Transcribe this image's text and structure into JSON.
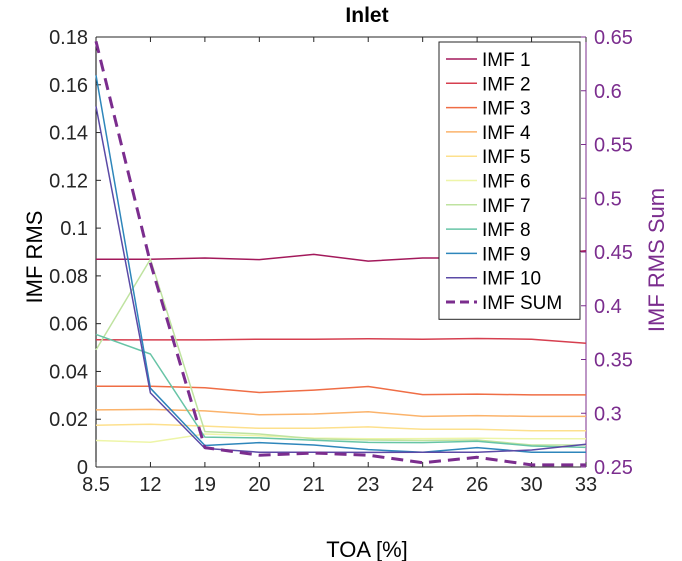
{
  "chart_data": {
    "type": "line",
    "title": "Inlet",
    "xlabel": "TOA [%]",
    "ylabel": "IMF RMS",
    "y2label": "IMF RMS Sum",
    "categories": [
      "8.5",
      "12",
      "19",
      "20",
      "21",
      "23",
      "24",
      "26",
      "30",
      "33"
    ],
    "ylim": [
      0,
      0.18
    ],
    "yticks": [
      0,
      0.02,
      0.04,
      0.06,
      0.08,
      0.1,
      0.12,
      0.14,
      0.16,
      0.18
    ],
    "y2lim": [
      0.25,
      0.65
    ],
    "y2ticks": [
      0.25,
      0.3,
      0.35,
      0.4,
      0.45,
      0.5,
      0.55,
      0.6,
      0.65
    ],
    "grid": false,
    "legend_position": "top-right",
    "left_axis_color": "#000000",
    "right_axis_color": "#7b2d8e",
    "series": [
      {
        "name": "IMF 1",
        "axis": "left",
        "color": "#a3195b",
        "dashed": false,
        "values": [
          0.087,
          0.087,
          0.0875,
          0.0868,
          0.089,
          0.0862,
          0.0875,
          0.0875,
          0.0885,
          0.0905
        ]
      },
      {
        "name": "IMF 2",
        "axis": "left",
        "color": "#d63f4f",
        "dashed": false,
        "values": [
          0.0533,
          0.0532,
          0.0532,
          0.0535,
          0.0535,
          0.0537,
          0.0535,
          0.0538,
          0.0535,
          0.0518
        ]
      },
      {
        "name": "IMF 3",
        "axis": "left",
        "color": "#ef6d45",
        "dashed": false,
        "values": [
          0.0338,
          0.0338,
          0.0332,
          0.0312,
          0.0322,
          0.0337,
          0.0303,
          0.0305,
          0.0302,
          0.0302
        ]
      },
      {
        "name": "IMF 4",
        "axis": "left",
        "color": "#fbb36b",
        "dashed": false,
        "values": [
          0.0239,
          0.0241,
          0.0235,
          0.0219,
          0.0222,
          0.0231,
          0.0212,
          0.0215,
          0.0212,
          0.0212
        ]
      },
      {
        "name": "IMF 5",
        "axis": "left",
        "color": "#fde08d",
        "dashed": false,
        "values": [
          0.0175,
          0.0179,
          0.0171,
          0.0162,
          0.0162,
          0.0168,
          0.0158,
          0.0158,
          0.0152,
          0.0152
        ]
      },
      {
        "name": "IMF 6",
        "axis": "left",
        "color": "#eef5a8",
        "dashed": false,
        "values": [
          0.0111,
          0.0104,
          0.0138,
          0.0131,
          0.0121,
          0.0118,
          0.0119,
          0.012,
          0.0118,
          0.0118
        ]
      },
      {
        "name": "IMF 7",
        "axis": "left",
        "color": "#bfe3a0",
        "dashed": false,
        "values": [
          0.049,
          0.087,
          0.0148,
          0.0138,
          0.0118,
          0.0113,
          0.0111,
          0.0113,
          0.0092,
          0.0092
        ]
      },
      {
        "name": "IMF 8",
        "axis": "left",
        "color": "#67c4a6",
        "dashed": false,
        "values": [
          0.0555,
          0.0473,
          0.0125,
          0.0122,
          0.0112,
          0.0103,
          0.0102,
          0.0108,
          0.0088,
          0.0082
        ]
      },
      {
        "name": "IMF 9",
        "axis": "left",
        "color": "#2e86bb",
        "dashed": false,
        "values": [
          0.164,
          0.033,
          0.009,
          0.0102,
          0.0092,
          0.0073,
          0.0062,
          0.0081,
          0.0062,
          0.0062
        ]
      },
      {
        "name": "IMF 10",
        "axis": "left",
        "color": "#5b4aa6",
        "dashed": false,
        "values": [
          0.151,
          0.031,
          0.0078,
          0.0062,
          0.0062,
          0.0061,
          0.0062,
          0.0062,
          0.0071,
          0.0095
        ]
      },
      {
        "name": "IMF SUM",
        "axis": "right",
        "color": "#7b2d8e",
        "dashed": true,
        "values": [
          0.646,
          0.44,
          0.268,
          0.261,
          0.263,
          0.261,
          0.254,
          0.259,
          0.252,
          0.252
        ]
      }
    ]
  }
}
